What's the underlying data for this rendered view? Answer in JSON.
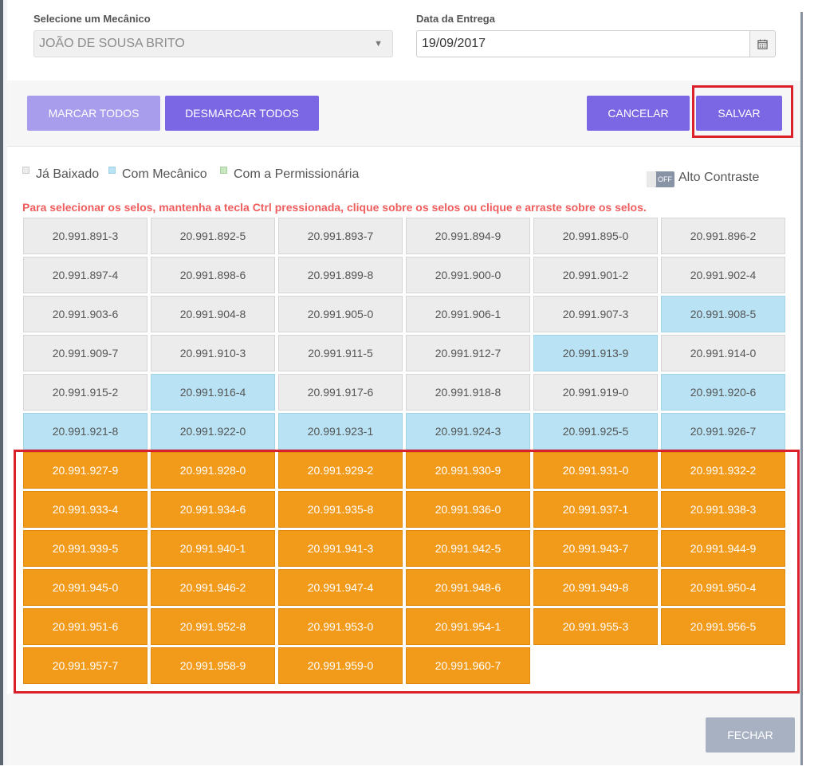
{
  "form": {
    "mechanic_label": "Selecione um Mecânico",
    "mechanic_value": "JOÃO DE SOUSA BRITO",
    "delivery_label": "Data da Entrega",
    "delivery_value": "19/09/2017"
  },
  "actions": {
    "mark_all": "MARCAR TODOS",
    "unmark_all": "DESMARCAR TODOS",
    "cancel": "CANCELAR",
    "save": "SALVAR"
  },
  "legend": {
    "baixado": "Já Baixado",
    "mecanico": "Com Mecânico",
    "permissionaria": "Com a Permissionária",
    "toggle_state": "OFF",
    "high_contrast": "Alto Contraste"
  },
  "instructions": "Para selecionar os selos, mantenha a tecla Ctrl pressionada, clique sobre os selos ou clique e arraste sobre os selos.",
  "seals": [
    {
      "code": "20.991.891-3",
      "status": "baixado"
    },
    {
      "code": "20.991.892-5",
      "status": "baixado"
    },
    {
      "code": "20.991.893-7",
      "status": "baixado"
    },
    {
      "code": "20.991.894-9",
      "status": "baixado"
    },
    {
      "code": "20.991.895-0",
      "status": "baixado"
    },
    {
      "code": "20.991.896-2",
      "status": "baixado"
    },
    {
      "code": "20.991.897-4",
      "status": "baixado"
    },
    {
      "code": "20.991.898-6",
      "status": "baixado"
    },
    {
      "code": "20.991.899-8",
      "status": "baixado"
    },
    {
      "code": "20.991.900-0",
      "status": "baixado"
    },
    {
      "code": "20.991.901-2",
      "status": "baixado"
    },
    {
      "code": "20.991.902-4",
      "status": "baixado"
    },
    {
      "code": "20.991.903-6",
      "status": "baixado"
    },
    {
      "code": "20.991.904-8",
      "status": "baixado"
    },
    {
      "code": "20.991.905-0",
      "status": "baixado"
    },
    {
      "code": "20.991.906-1",
      "status": "baixado"
    },
    {
      "code": "20.991.907-3",
      "status": "baixado"
    },
    {
      "code": "20.991.908-5",
      "status": "mecanico"
    },
    {
      "code": "20.991.909-7",
      "status": "baixado"
    },
    {
      "code": "20.991.910-3",
      "status": "baixado"
    },
    {
      "code": "20.991.911-5",
      "status": "baixado"
    },
    {
      "code": "20.991.912-7",
      "status": "baixado"
    },
    {
      "code": "20.991.913-9",
      "status": "mecanico"
    },
    {
      "code": "20.991.914-0",
      "status": "baixado"
    },
    {
      "code": "20.991.915-2",
      "status": "baixado"
    },
    {
      "code": "20.991.916-4",
      "status": "mecanico"
    },
    {
      "code": "20.991.917-6",
      "status": "baixado"
    },
    {
      "code": "20.991.918-8",
      "status": "baixado"
    },
    {
      "code": "20.991.919-0",
      "status": "baixado"
    },
    {
      "code": "20.991.920-6",
      "status": "mecanico"
    },
    {
      "code": "20.991.921-8",
      "status": "mecanico"
    },
    {
      "code": "20.991.922-0",
      "status": "mecanico"
    },
    {
      "code": "20.991.923-1",
      "status": "mecanico"
    },
    {
      "code": "20.991.924-3",
      "status": "mecanico"
    },
    {
      "code": "20.991.925-5",
      "status": "mecanico"
    },
    {
      "code": "20.991.926-7",
      "status": "mecanico"
    },
    {
      "code": "20.991.927-9",
      "status": "selected"
    },
    {
      "code": "20.991.928-0",
      "status": "selected"
    },
    {
      "code": "20.991.929-2",
      "status": "selected"
    },
    {
      "code": "20.991.930-9",
      "status": "selected"
    },
    {
      "code": "20.991.931-0",
      "status": "selected"
    },
    {
      "code": "20.991.932-2",
      "status": "selected"
    },
    {
      "code": "20.991.933-4",
      "status": "selected"
    },
    {
      "code": "20.991.934-6",
      "status": "selected"
    },
    {
      "code": "20.991.935-8",
      "status": "selected"
    },
    {
      "code": "20.991.936-0",
      "status": "selected"
    },
    {
      "code": "20.991.937-1",
      "status": "selected"
    },
    {
      "code": "20.991.938-3",
      "status": "selected"
    },
    {
      "code": "20.991.939-5",
      "status": "selected"
    },
    {
      "code": "20.991.940-1",
      "status": "selected"
    },
    {
      "code": "20.991.941-3",
      "status": "selected"
    },
    {
      "code": "20.991.942-5",
      "status": "selected"
    },
    {
      "code": "20.991.943-7",
      "status": "selected"
    },
    {
      "code": "20.991.944-9",
      "status": "selected"
    },
    {
      "code": "20.991.945-0",
      "status": "selected"
    },
    {
      "code": "20.991.946-2",
      "status": "selected"
    },
    {
      "code": "20.991.947-4",
      "status": "selected"
    },
    {
      "code": "20.991.948-6",
      "status": "selected"
    },
    {
      "code": "20.991.949-8",
      "status": "selected"
    },
    {
      "code": "20.991.950-4",
      "status": "selected"
    },
    {
      "code": "20.991.951-6",
      "status": "selected"
    },
    {
      "code": "20.991.952-8",
      "status": "selected"
    },
    {
      "code": "20.991.953-0",
      "status": "selected"
    },
    {
      "code": "20.991.954-1",
      "status": "selected"
    },
    {
      "code": "20.991.955-3",
      "status": "selected"
    },
    {
      "code": "20.991.956-5",
      "status": "selected"
    },
    {
      "code": "20.991.957-7",
      "status": "selected"
    },
    {
      "code": "20.991.958-9",
      "status": "selected"
    },
    {
      "code": "20.991.959-0",
      "status": "selected"
    },
    {
      "code": "20.991.960-7",
      "status": "selected"
    }
  ],
  "footer": {
    "close": "FECHAR"
  },
  "colors": {
    "baixado": "#ececec",
    "mecanico": "#b9e3f4",
    "permissionaria": "#c8e6c0",
    "selected": "#f29a1a",
    "primary": "#7b66e3",
    "highlight": "#d9202b"
  }
}
